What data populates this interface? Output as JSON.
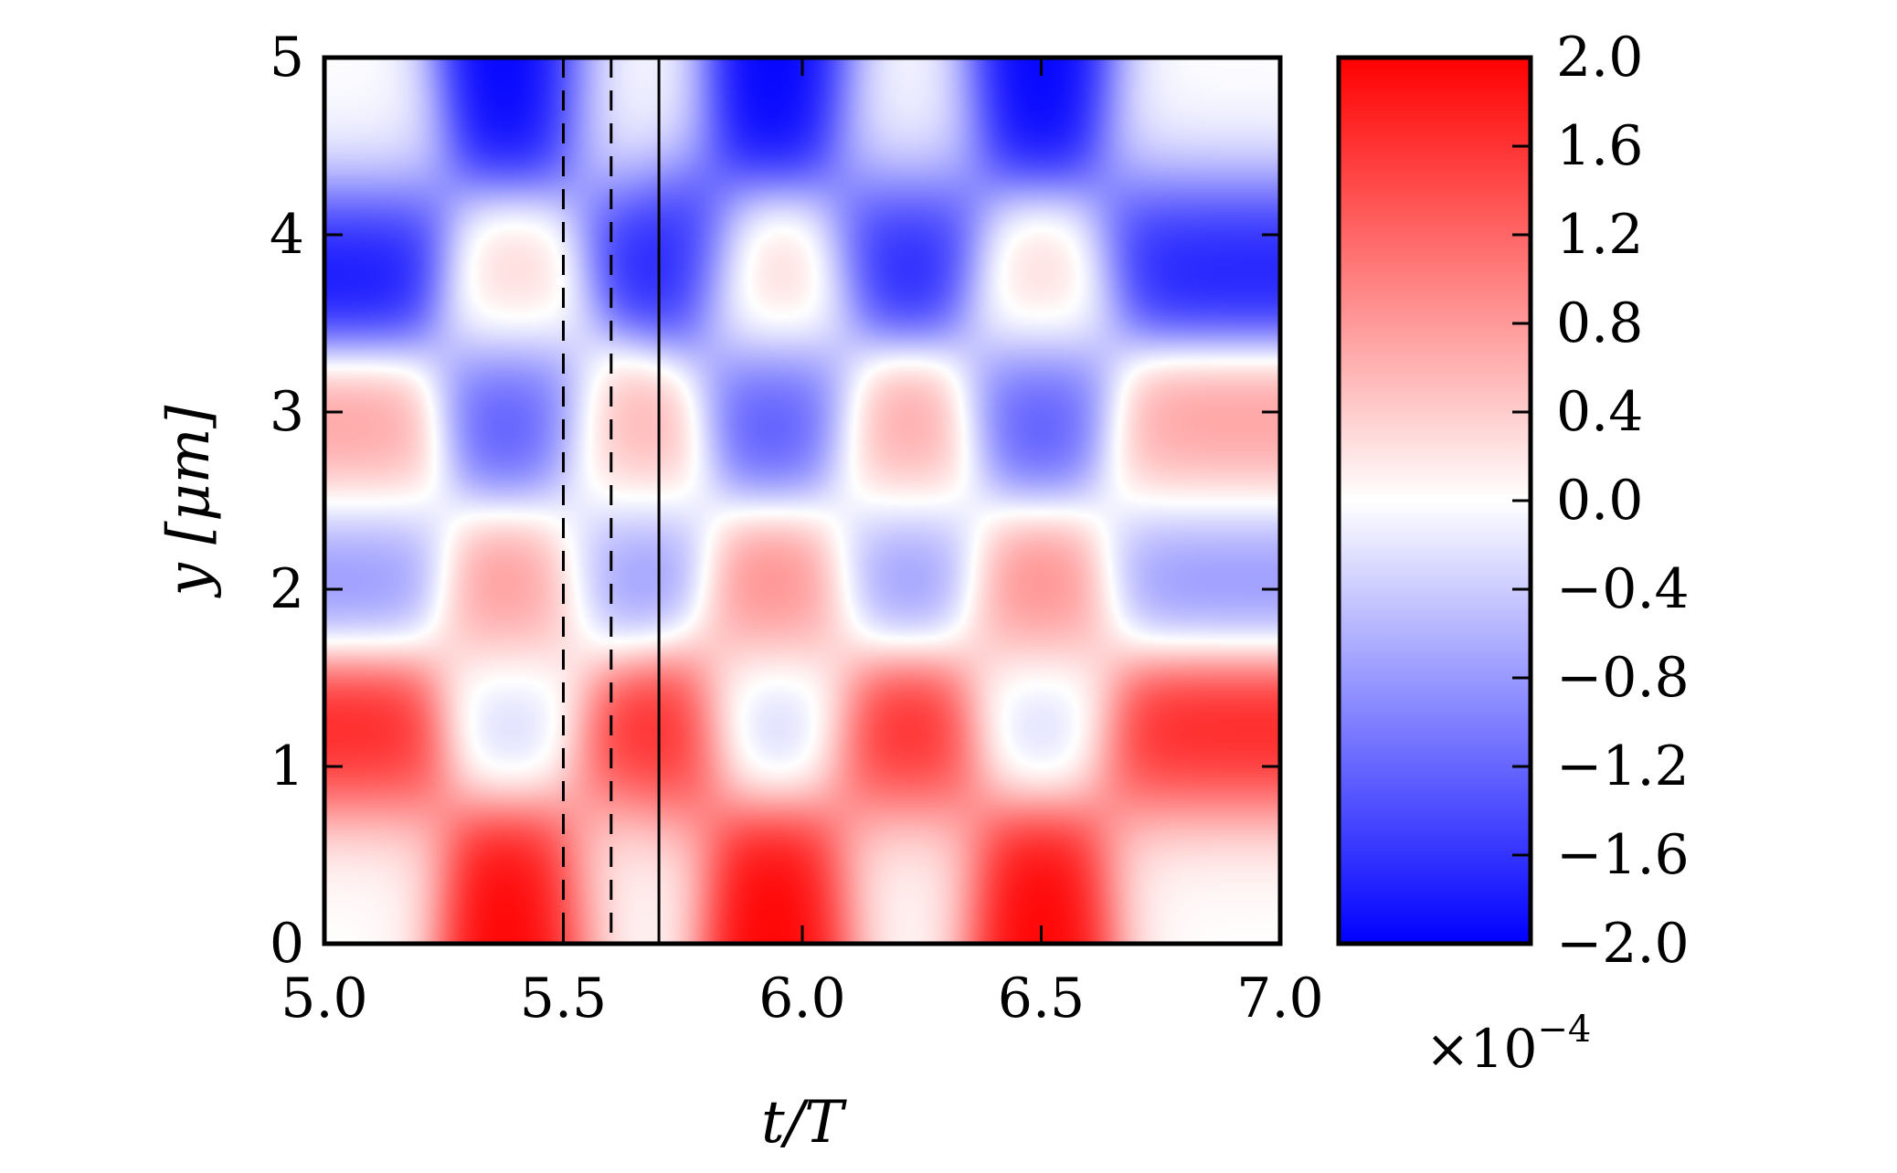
{
  "chart_data": {
    "type": "heatmap",
    "xlabel": "t/T",
    "ylabel": "y [μm]",
    "xlim": [
      5.0,
      7.0
    ],
    "ylim": [
      0,
      5
    ],
    "x_ticks": [
      {
        "value": 5.0,
        "label": "5.0"
      },
      {
        "value": 5.5,
        "label": "5.5"
      },
      {
        "value": 6.0,
        "label": "6.0"
      },
      {
        "value": 6.5,
        "label": "6.5"
      },
      {
        "value": 7.0,
        "label": "7.0"
      }
    ],
    "y_ticks": [
      {
        "value": 0,
        "label": "0"
      },
      {
        "value": 1,
        "label": "1"
      },
      {
        "value": 2,
        "label": "2"
      },
      {
        "value": 3,
        "label": "3"
      },
      {
        "value": 4,
        "label": "4"
      },
      {
        "value": 5,
        "label": "5"
      }
    ],
    "colorbar": {
      "range": [
        -2.0,
        2.0
      ],
      "colormap": "bwr",
      "low_color": "#0000ff",
      "mid_color": "#ffffff",
      "high_color": "#ff0000",
      "multiplier": "×10",
      "multiplier_exponent": "−4",
      "ticks": [
        {
          "value": 2.0,
          "label": "2.0"
        },
        {
          "value": 1.6,
          "label": "1.6"
        },
        {
          "value": 1.2,
          "label": "1.2"
        },
        {
          "value": 0.8,
          "label": "0.8"
        },
        {
          "value": 0.4,
          "label": "0.4"
        },
        {
          "value": 0.0,
          "label": "0.0"
        },
        {
          "value": -0.4,
          "label": "−0.4"
        },
        {
          "value": -0.8,
          "label": "−0.8"
        },
        {
          "value": -1.2,
          "label": "−1.2"
        },
        {
          "value": -1.6,
          "label": "−1.6"
        },
        {
          "value": -2.0,
          "label": "−2.0"
        }
      ]
    },
    "vertical_lines": [
      {
        "x": 5.5,
        "style": "dashed"
      },
      {
        "x": 5.6,
        "style": "dashed"
      },
      {
        "x": 5.7,
        "style": "solid"
      }
    ],
    "field_features": [
      {
        "t": 5.1,
        "y": 4.6,
        "value": 0.0
      },
      {
        "t": 5.4,
        "y": 4.75,
        "value": -2.0
      },
      {
        "t": 5.65,
        "y": 4.7,
        "value": 0.0
      },
      {
        "t": 5.95,
        "y": 4.75,
        "value": -2.0
      },
      {
        "t": 6.22,
        "y": 4.65,
        "value": 0.0
      },
      {
        "t": 6.5,
        "y": 4.75,
        "value": -2.0
      },
      {
        "t": 6.78,
        "y": 4.65,
        "value": 0.0
      },
      {
        "t": 5.1,
        "y": 3.85,
        "value": -1.9
      },
      {
        "t": 5.4,
        "y": 3.75,
        "value": 0.4
      },
      {
        "t": 5.7,
        "y": 3.9,
        "value": -1.8
      },
      {
        "t": 5.95,
        "y": 3.75,
        "value": 0.45
      },
      {
        "t": 6.22,
        "y": 3.9,
        "value": -1.8
      },
      {
        "t": 6.5,
        "y": 3.75,
        "value": 0.4
      },
      {
        "t": 6.78,
        "y": 3.9,
        "value": -1.8
      },
      {
        "t": 5.1,
        "y": 2.85,
        "value": 0.8
      },
      {
        "t": 5.4,
        "y": 2.95,
        "value": -1.4
      },
      {
        "t": 5.65,
        "y": 2.85,
        "value": 0.7
      },
      {
        "t": 5.95,
        "y": 2.95,
        "value": -1.4
      },
      {
        "t": 6.22,
        "y": 2.85,
        "value": 0.8
      },
      {
        "t": 6.5,
        "y": 2.95,
        "value": -1.4
      },
      {
        "t": 6.78,
        "y": 2.85,
        "value": 0.8
      },
      {
        "t": 5.1,
        "y": 2.1,
        "value": -0.9
      },
      {
        "t": 5.4,
        "y": 2.0,
        "value": 0.9
      },
      {
        "t": 5.65,
        "y": 2.1,
        "value": -0.9
      },
      {
        "t": 5.95,
        "y": 2.0,
        "value": 1.0
      },
      {
        "t": 6.22,
        "y": 2.1,
        "value": -0.9
      },
      {
        "t": 6.5,
        "y": 2.0,
        "value": 1.0
      },
      {
        "t": 6.78,
        "y": 2.1,
        "value": -0.9
      },
      {
        "t": 5.1,
        "y": 1.15,
        "value": 1.8
      },
      {
        "t": 5.4,
        "y": 1.25,
        "value": -0.4
      },
      {
        "t": 5.68,
        "y": 1.15,
        "value": 1.8
      },
      {
        "t": 5.95,
        "y": 1.25,
        "value": -0.45
      },
      {
        "t": 6.22,
        "y": 1.15,
        "value": 1.8
      },
      {
        "t": 6.5,
        "y": 1.25,
        "value": -0.4
      },
      {
        "t": 6.78,
        "y": 1.15,
        "value": 1.8
      },
      {
        "t": 5.1,
        "y": 0.4,
        "value": 0.0
      },
      {
        "t": 5.4,
        "y": 0.3,
        "value": 2.0
      },
      {
        "t": 5.65,
        "y": 0.4,
        "value": 0.0
      },
      {
        "t": 5.95,
        "y": 0.3,
        "value": 2.0
      },
      {
        "t": 6.22,
        "y": 0.4,
        "value": 0.0
      },
      {
        "t": 6.5,
        "y": 0.3,
        "value": 2.0
      },
      {
        "t": 6.78,
        "y": 0.4,
        "value": 0.0
      }
    ]
  }
}
